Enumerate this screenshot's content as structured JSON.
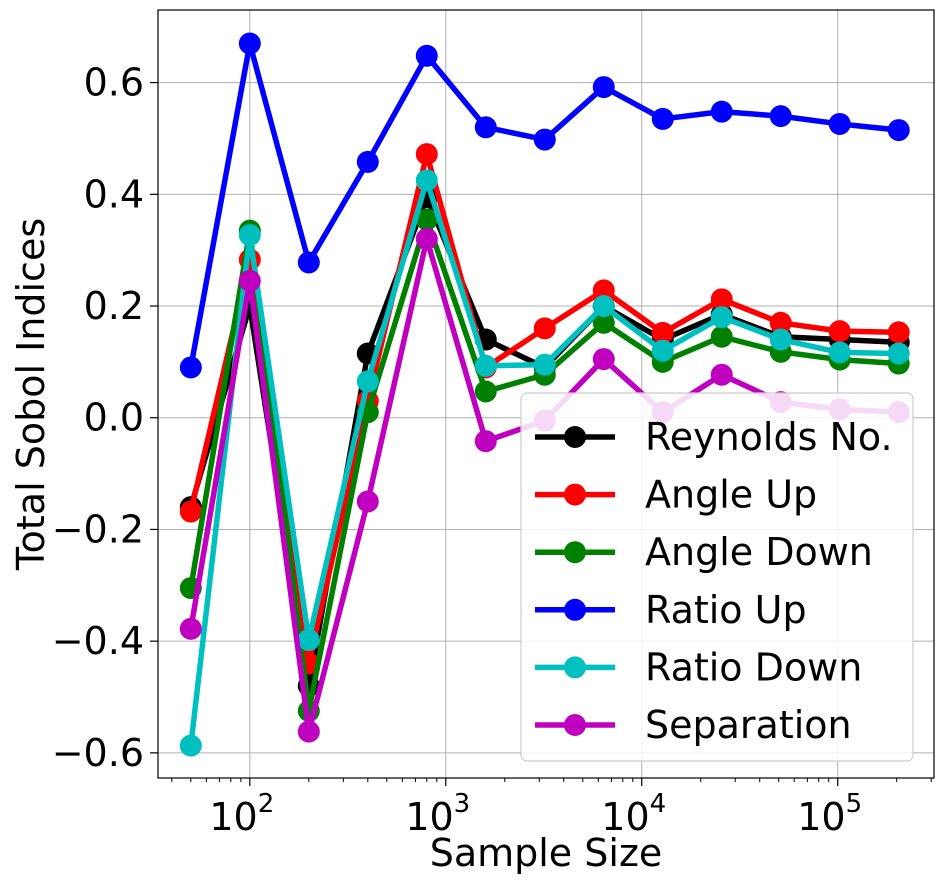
{
  "chart_data": {
    "type": "line",
    "xscale": "log",
    "xlabel": "Sample Size",
    "ylabel": "Total Sobol Indices",
    "xlim": [
      34,
      310000
    ],
    "ylim": [
      -0.645,
      0.73
    ],
    "grid": true,
    "legend_position": "bottom-right",
    "x": [
      50,
      100,
      200,
      400,
      800,
      1600,
      3200,
      6400,
      12800,
      25600,
      51200,
      102400,
      204800
    ],
    "xticks": [
      {
        "value": 100,
        "base": "10",
        "exp": "2"
      },
      {
        "value": 1000,
        "base": "10",
        "exp": "3"
      },
      {
        "value": 10000,
        "base": "10",
        "exp": "4"
      },
      {
        "value": 100000,
        "base": "10",
        "exp": "5"
      }
    ],
    "yticks": [
      {
        "value": -0.6,
        "label": "−0.6"
      },
      {
        "value": -0.4,
        "label": "−0.4"
      },
      {
        "value": -0.2,
        "label": "−0.2"
      },
      {
        "value": 0.0,
        "label": "0.0"
      },
      {
        "value": 0.2,
        "label": "0.2"
      },
      {
        "value": 0.4,
        "label": "0.4"
      },
      {
        "value": 0.6,
        "label": "0.6"
      }
    ],
    "series": [
      {
        "name": "Reynolds No.",
        "color": "#000000",
        "values": [
          -0.16,
          0.2,
          -0.48,
          0.115,
          0.395,
          0.14,
          0.09,
          0.2,
          0.14,
          0.185,
          0.145,
          0.14,
          0.135
        ]
      },
      {
        "name": "Angle Up",
        "color": "#ff0000",
        "values": [
          -0.168,
          0.283,
          -0.44,
          0.03,
          0.472,
          0.09,
          0.16,
          0.228,
          0.152,
          0.212,
          0.17,
          0.155,
          0.153
        ]
      },
      {
        "name": "Angle Down",
        "color": "#008000",
        "values": [
          -0.305,
          0.335,
          -0.525,
          0.01,
          0.355,
          0.047,
          0.077,
          0.17,
          0.1,
          0.145,
          0.118,
          0.104,
          0.097
        ]
      },
      {
        "name": "Ratio Up",
        "color": "#0000ff",
        "values": [
          0.09,
          0.67,
          0.278,
          0.458,
          0.648,
          0.52,
          0.498,
          0.592,
          0.535,
          0.548,
          0.54,
          0.526,
          0.515
        ]
      },
      {
        "name": "Ratio Down",
        "color": "#00bfbf",
        "values": [
          -0.587,
          0.327,
          -0.398,
          0.065,
          0.425,
          0.093,
          0.095,
          0.2,
          0.12,
          0.18,
          0.14,
          0.117,
          0.115
        ]
      },
      {
        "name": "Separation",
        "color": "#bf00bf",
        "values": [
          -0.378,
          0.245,
          -0.562,
          -0.15,
          0.32,
          -0.042,
          -0.005,
          0.105,
          0.01,
          0.077,
          0.028,
          0.015,
          0.01
        ]
      }
    ]
  }
}
